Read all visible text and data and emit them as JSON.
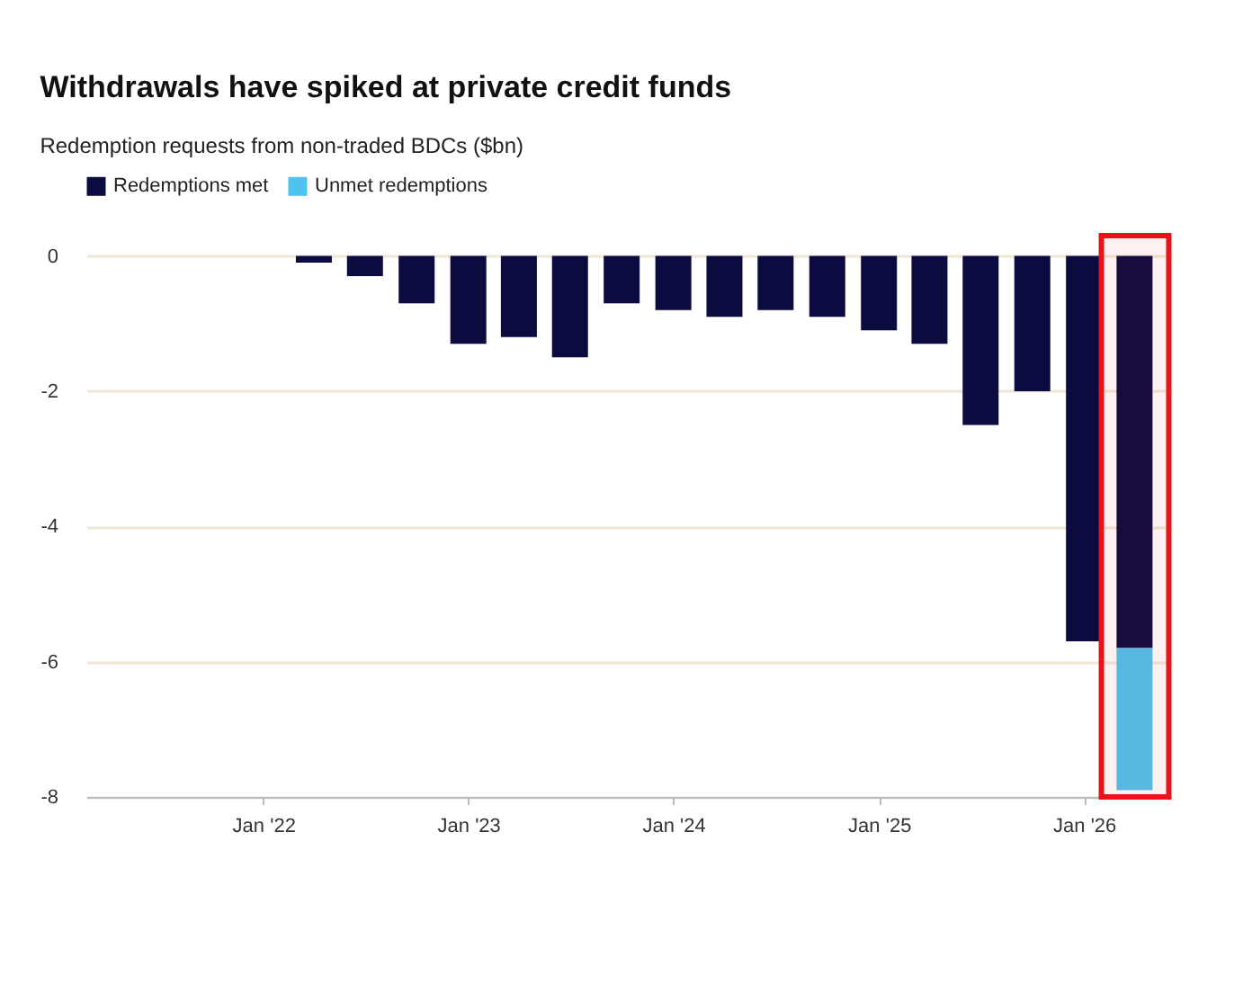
{
  "chart_data": {
    "type": "bar",
    "title": "Withdrawals have spiked at private credit funds",
    "subtitle": "Redemption requests from non-traded BDCs ($bn)",
    "x": [
      "2021-04-01",
      "2021-07-01",
      "2021-10-01",
      "2022-01-01",
      "2022-04-01",
      "2022-07-01",
      "2022-10-01",
      "2023-01-01",
      "2023-04-01",
      "2023-07-01",
      "2023-10-01",
      "2024-01-01",
      "2024-04-01",
      "2024-07-01",
      "2024-10-01",
      "2025-01-01",
      "2025-04-01",
      "2025-07-01",
      "2025-10-01",
      "2026-01-01",
      "2026-04-01"
    ],
    "stacked": true,
    "series": [
      {
        "name": "Redemptions met",
        "color": "#0b0b3f",
        "values": [
          0,
          0,
          0,
          0,
          -0.1,
          -0.3,
          -0.7,
          -1.3,
          -1.2,
          -1.5,
          -0.7,
          -0.8,
          -0.9,
          -0.8,
          -0.9,
          -1.1,
          -1.3,
          -2.5,
          -2.0,
          -5.7,
          -5.8
        ]
      },
      {
        "name": "Unmet redemptions",
        "color": "#4fc3ef",
        "values": [
          null,
          null,
          null,
          null,
          null,
          null,
          null,
          null,
          null,
          null,
          null,
          null,
          null,
          null,
          null,
          null,
          null,
          null,
          null,
          null,
          -2.1
        ]
      }
    ],
    "xlim": [
      "2021-02-20",
      "2026-06-05"
    ],
    "xticks": [
      {
        "value": "2022-01-01",
        "label": "Jan '22"
      },
      {
        "value": "2023-01-01",
        "label": "Jan '23"
      },
      {
        "value": "2024-01-01",
        "label": "Jan '24"
      },
      {
        "value": "2025-01-01",
        "label": "Jan '25"
      },
      {
        "value": "2026-01-01",
        "label": "Jan '26"
      }
    ],
    "ylim": [
      -8,
      0.3
    ],
    "yticks": [
      0,
      -2,
      -4,
      -6,
      -8
    ],
    "grid": "y",
    "legend": "top left",
    "bands": [
      {
        "axis": "x",
        "from": "2026-02-01",
        "to": "2026-06-01",
        "color": "#e8141b"
      }
    ]
  }
}
